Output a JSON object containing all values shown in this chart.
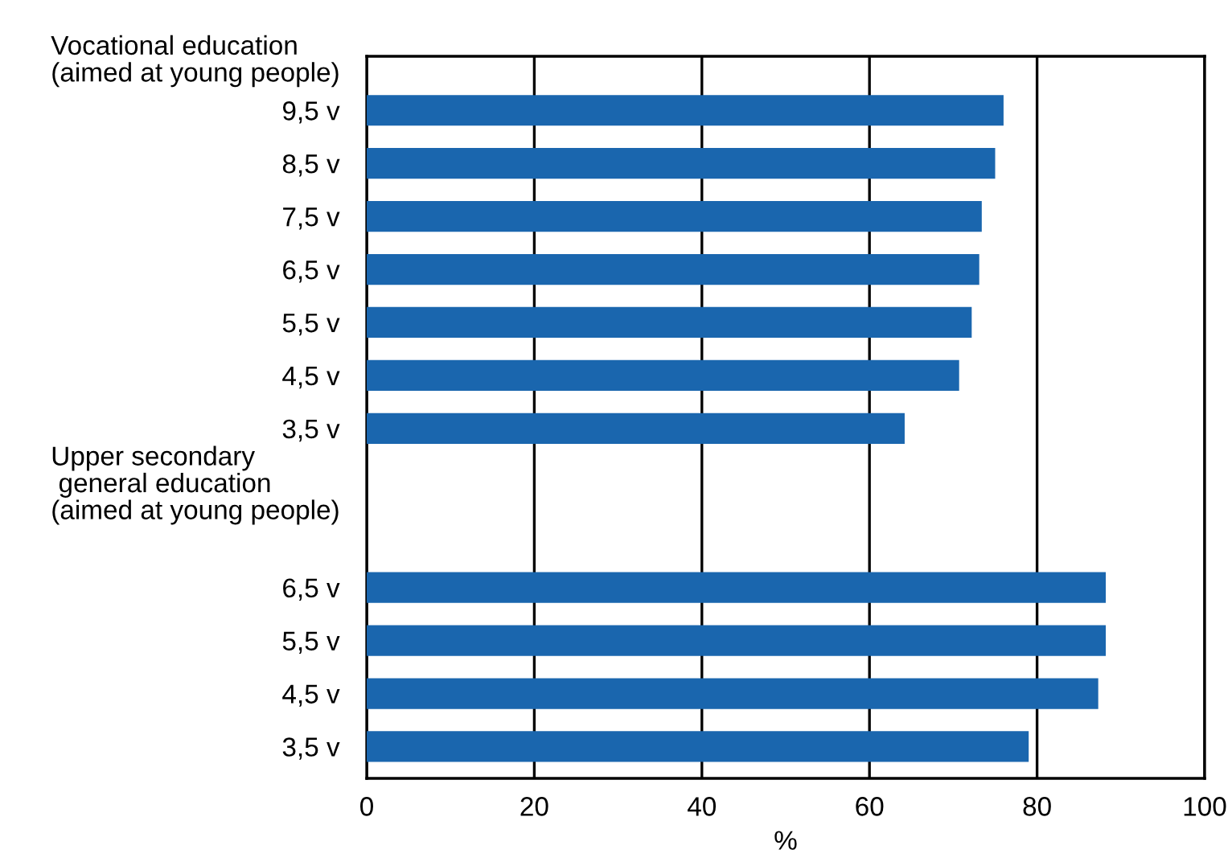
{
  "chart_data": {
    "type": "bar",
    "orientation": "horizontal",
    "categories": [
      "Vocational education\n(aimed at young people)",
      "9,5 v",
      "8,5 v",
      "7,5 v",
      "6,5 v",
      "5,5 v",
      "4,5 v",
      "3,5 v",
      "Upper secondary\n general education\n(aimed at young people)",
      null,
      "6,5 v",
      "5,5 v",
      "4,5 v",
      "3,5 v"
    ],
    "values": [
      null,
      76,
      75,
      73.4,
      73.1,
      72.2,
      70.7,
      64.2,
      null,
      null,
      88.2,
      88.2,
      87.3,
      79
    ],
    "color": "#1a66ae",
    "xlim": [
      0,
      100
    ],
    "xticks": [
      0,
      20,
      40,
      60,
      80,
      100
    ],
    "xlabel": "%",
    "grid": "x"
  }
}
